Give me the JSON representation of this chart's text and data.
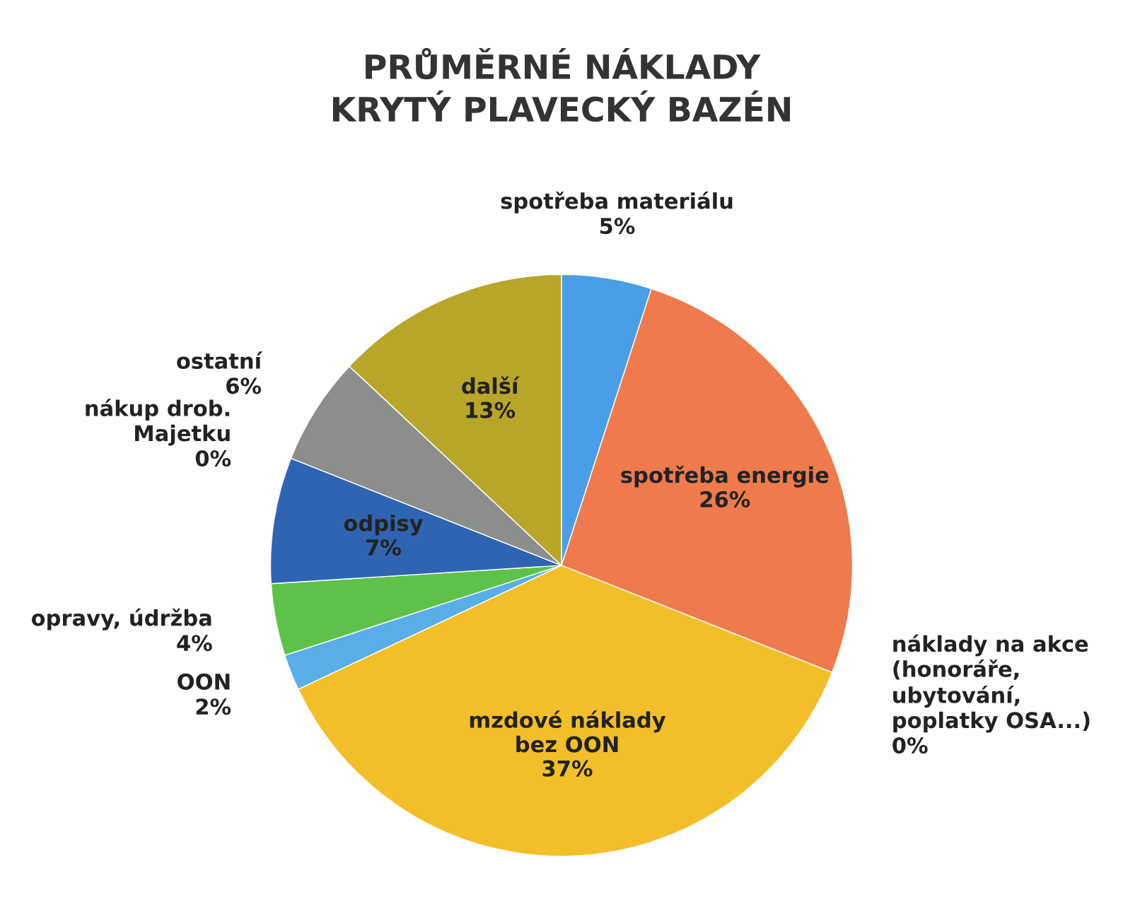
{
  "chart_data": {
    "type": "pie",
    "title": "PRŮMĚRNÉ NÁKLADY\nKRYTÝ PLAVECKÝ BAZÉN",
    "categories": [
      "spotřeba materiálu",
      "spotřeba energie",
      "náklady na akce\n(honoráře,\nubytování,\npoplatky OSA...)",
      "mzdové náklady\nbez OON",
      "OON",
      "opravy, údržba",
      "odpisy",
      "nákup drob.\nMajetku",
      "ostatní",
      "další"
    ],
    "values": [
      5,
      26,
      0,
      37,
      2,
      4,
      7,
      0,
      6,
      13
    ],
    "value_labels": [
      "5%",
      "26%",
      "0%",
      "37%",
      "2%",
      "4%",
      "7%",
      "0%",
      "6%",
      "13%"
    ],
    "colors": [
      "#4a9ee6",
      "#ee7a4e",
      "#a6a6a6",
      "#f2bf2a",
      "#5aaee8",
      "#5ec24a",
      "#2f64b2",
      "#e8803a",
      "#8c8e8c",
      "#b8a62a"
    ],
    "legend": false
  }
}
